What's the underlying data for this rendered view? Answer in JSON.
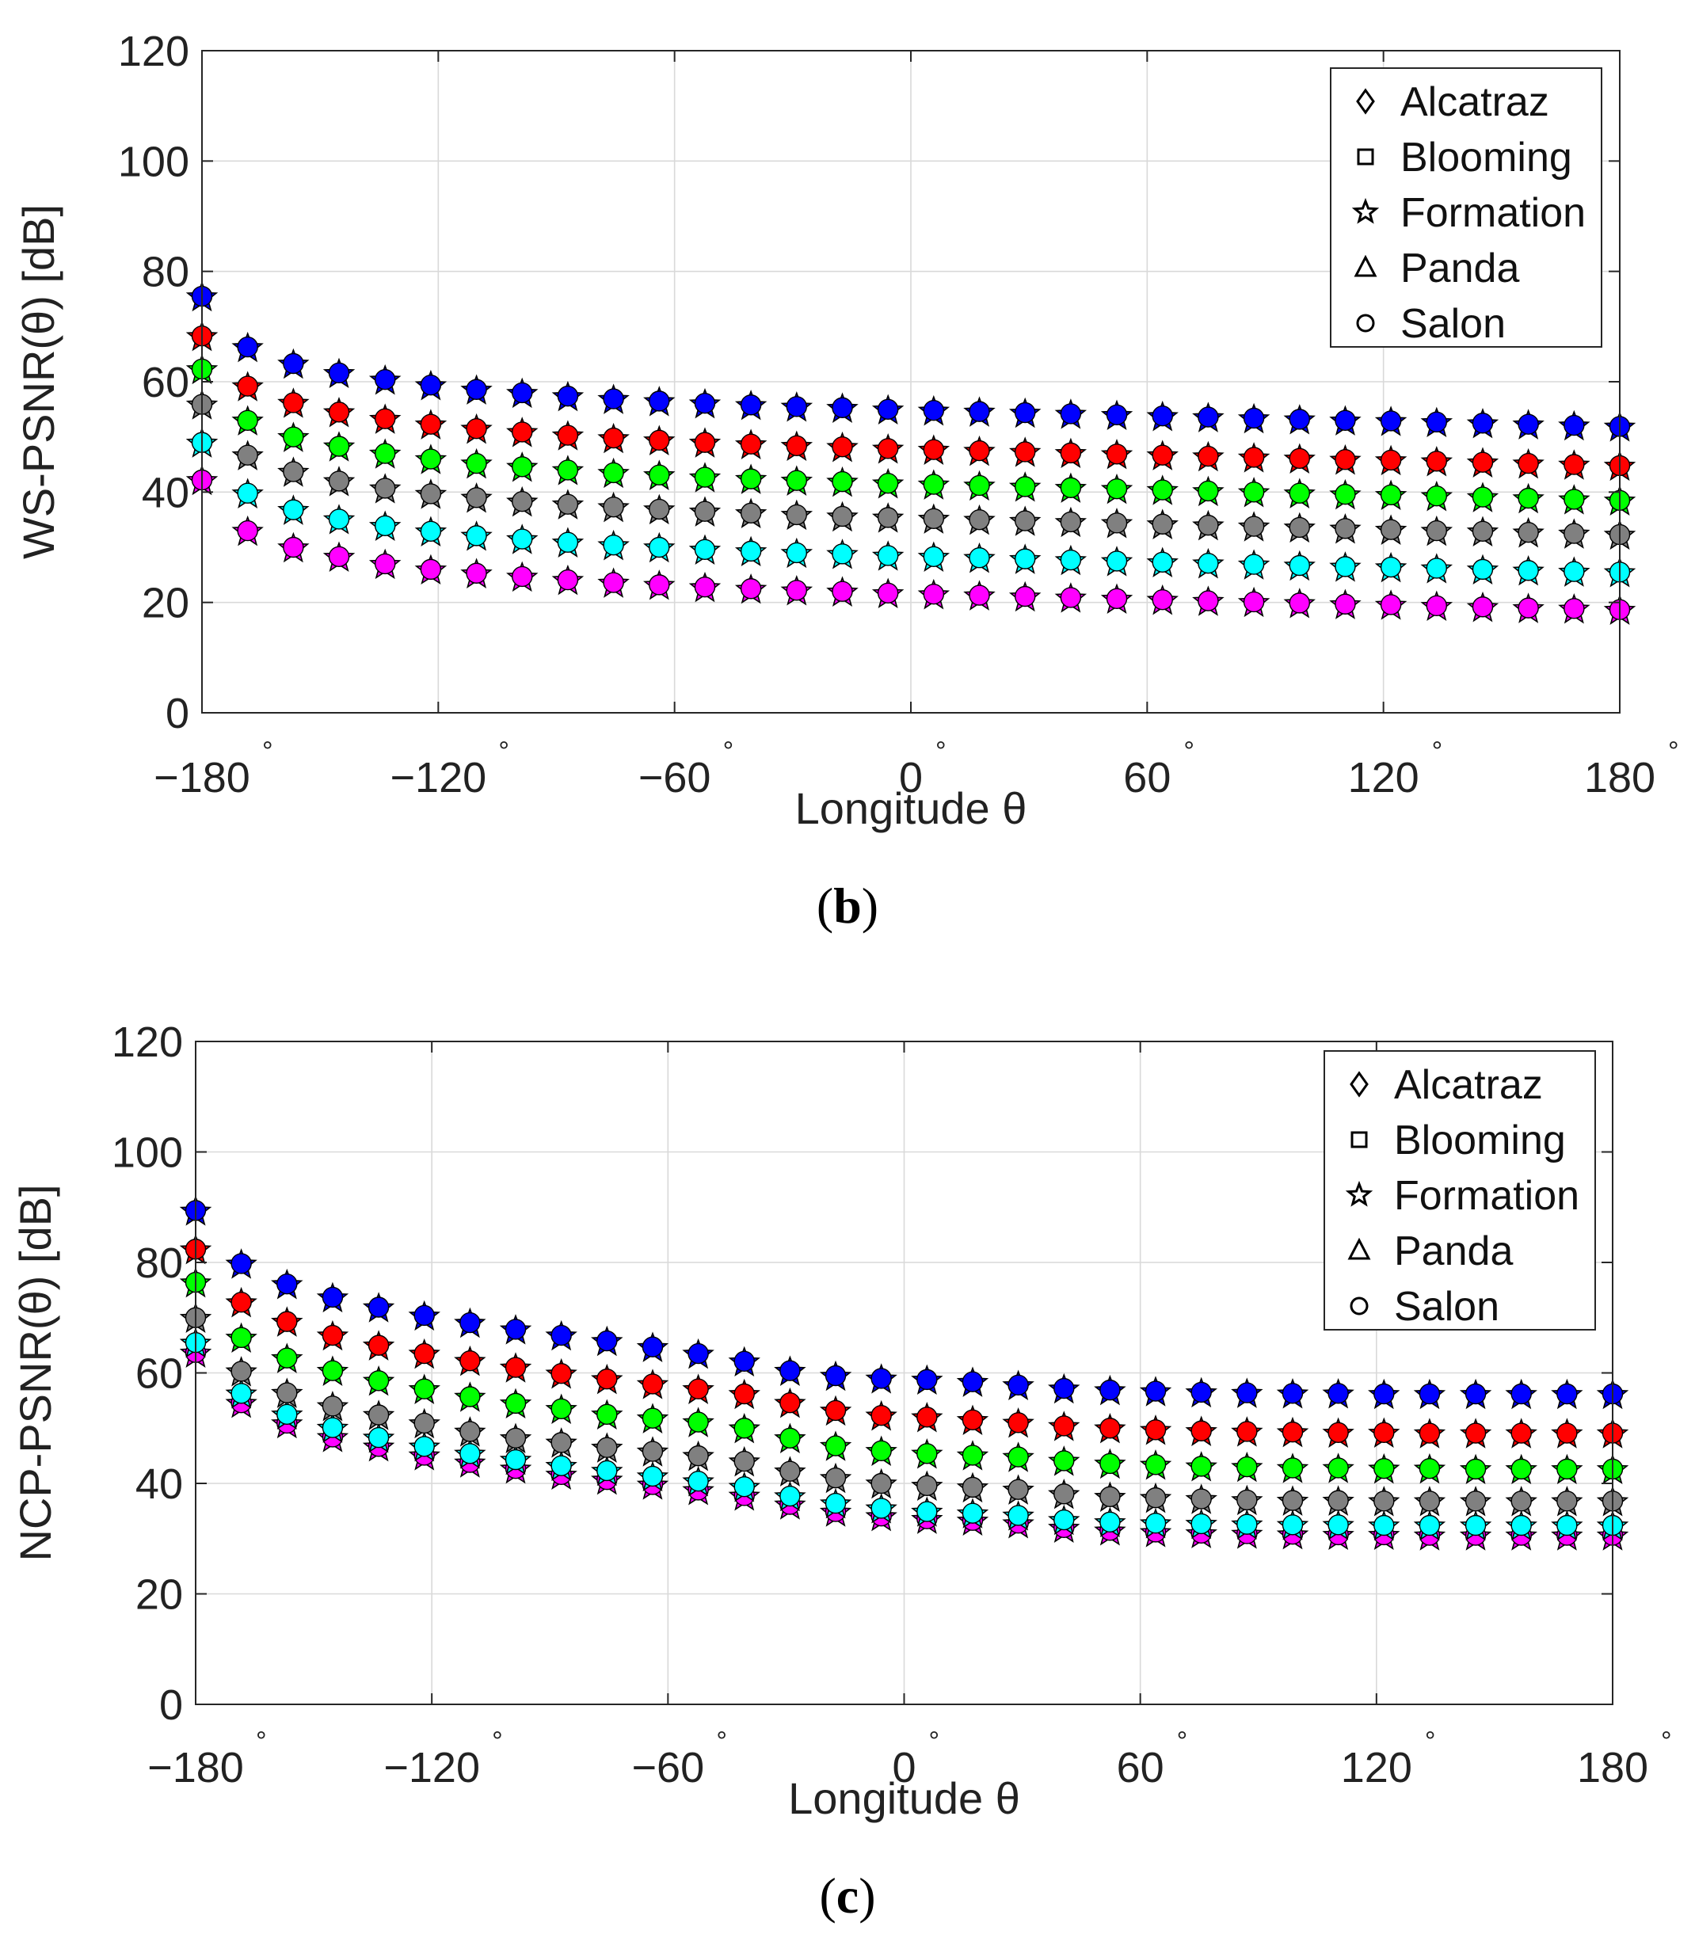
{
  "legend_entries": [
    {
      "name": "Alcatraz",
      "marker": "diamond"
    },
    {
      "name": "Blooming",
      "marker": "square"
    },
    {
      "name": "Formation",
      "marker": "star"
    },
    {
      "name": "Panda",
      "marker": "triangle"
    },
    {
      "name": "Salon",
      "marker": "circle"
    }
  ],
  "chart_data": [
    {
      "type": "scatter",
      "panel": "b",
      "caption_open": "(",
      "caption_letter": "b",
      "caption_close": ")",
      "xlabel": "Longitude θ",
      "ylabel": "WS-PSNR(θ) [dB]",
      "xlim": [
        -180,
        180
      ],
      "ylim": [
        0,
        120
      ],
      "xticks": [
        -180,
        -120,
        -60,
        0,
        60,
        120,
        180
      ],
      "yticks": [
        0,
        20,
        40,
        60,
        80,
        100,
        120
      ],
      "xtick_labels": [
        "−180",
        "−120",
        "−60",
        "0",
        "60",
        "120",
        "180"
      ],
      "xtick_suffix": "°",
      "ytick_labels": [
        "0",
        "20",
        "40",
        "60",
        "80",
        "100",
        "120"
      ],
      "grid": true,
      "legend_position": "top-right",
      "x": [
        -180,
        -168.4,
        -156.8,
        -145.2,
        -133.5,
        -121.9,
        -110.3,
        -98.7,
        -87.1,
        -75.5,
        -63.9,
        -52.3,
        -40.6,
        -29.0,
        -17.4,
        -5.8,
        5.8,
        17.4,
        29.0,
        40.6,
        52.3,
        63.9,
        75.5,
        87.1,
        98.7,
        110.3,
        121.9,
        133.5,
        145.2,
        156.8,
        168.4,
        180
      ],
      "series": [
        {
          "color": "#0000ff",
          "values": [
            75.5,
            66.3,
            63.3,
            61.6,
            60.4,
            59.4,
            58.6,
            58.0,
            57.4,
            56.9,
            56.5,
            56.1,
            55.8,
            55.5,
            55.3,
            55.0,
            54.8,
            54.6,
            54.4,
            54.2,
            54.0,
            53.8,
            53.6,
            53.4,
            53.2,
            53.0,
            52.9,
            52.7,
            52.5,
            52.3,
            52.1,
            51.9
          ]
        },
        {
          "color": "#ff0000",
          "values": [
            68.3,
            59.2,
            56.2,
            54.5,
            53.3,
            52.3,
            51.5,
            50.9,
            50.3,
            49.8,
            49.4,
            49.0,
            48.7,
            48.4,
            48.2,
            47.9,
            47.7,
            47.5,
            47.3,
            47.1,
            46.9,
            46.7,
            46.5,
            46.3,
            46.1,
            45.9,
            45.8,
            45.6,
            45.4,
            45.2,
            45.0,
            44.8
          ]
        },
        {
          "color": "#00ff00",
          "values": [
            62.3,
            53.0,
            50.0,
            48.3,
            47.0,
            46.0,
            45.2,
            44.6,
            44.0,
            43.5,
            43.1,
            42.7,
            42.4,
            42.1,
            41.9,
            41.6,
            41.4,
            41.2,
            41.0,
            40.8,
            40.6,
            40.4,
            40.2,
            40.0,
            39.8,
            39.6,
            39.5,
            39.3,
            39.1,
            38.9,
            38.7,
            38.5
          ]
        },
        {
          "color": "#808080",
          "values": [
            55.9,
            46.7,
            43.7,
            42.0,
            40.7,
            39.7,
            39.0,
            38.3,
            37.8,
            37.3,
            36.9,
            36.5,
            36.2,
            35.9,
            35.6,
            35.4,
            35.2,
            35.0,
            34.8,
            34.6,
            34.4,
            34.2,
            34.0,
            33.8,
            33.6,
            33.4,
            33.2,
            33.0,
            32.9,
            32.7,
            32.5,
            32.3
          ]
        },
        {
          "color": "#00ffff",
          "values": [
            49.0,
            39.8,
            36.8,
            35.1,
            33.9,
            32.9,
            32.1,
            31.5,
            30.9,
            30.4,
            30.0,
            29.6,
            29.3,
            29.0,
            28.8,
            28.5,
            28.3,
            28.1,
            27.9,
            27.7,
            27.5,
            27.3,
            27.1,
            26.9,
            26.7,
            26.5,
            26.4,
            26.2,
            26.0,
            25.8,
            25.6,
            25.5
          ]
        },
        {
          "color": "#ff00ff",
          "values": [
            42.2,
            33.0,
            30.0,
            28.3,
            27.0,
            26.0,
            25.3,
            24.7,
            24.1,
            23.6,
            23.2,
            22.8,
            22.5,
            22.2,
            22.0,
            21.7,
            21.5,
            21.3,
            21.1,
            20.9,
            20.7,
            20.5,
            20.3,
            20.1,
            19.9,
            19.7,
            19.6,
            19.4,
            19.2,
            19.0,
            18.9,
            18.7
          ]
        }
      ]
    },
    {
      "type": "scatter",
      "panel": "c",
      "caption_open": "(",
      "caption_letter": "c",
      "caption_close": ")",
      "xlabel": "Longitude θ",
      "ylabel": "NCP-PSNR(θ) [dB]",
      "xlim": [
        -180,
        180
      ],
      "ylim": [
        0,
        120
      ],
      "xticks": [
        -180,
        -120,
        -60,
        0,
        60,
        120,
        180
      ],
      "yticks": [
        0,
        20,
        40,
        60,
        80,
        100,
        120
      ],
      "xtick_labels": [
        "−180",
        "−120",
        "−60",
        "0",
        "60",
        "120",
        "180"
      ],
      "xtick_suffix": "°",
      "ytick_labels": [
        "0",
        "20",
        "40",
        "60",
        "80",
        "100",
        "120"
      ],
      "grid": true,
      "legend_position": "top-right",
      "x": [
        -180,
        -168.4,
        -156.8,
        -145.2,
        -133.5,
        -121.9,
        -110.3,
        -98.7,
        -87.1,
        -75.5,
        -63.9,
        -52.3,
        -40.6,
        -29.0,
        -17.4,
        -5.8,
        5.8,
        17.4,
        29.0,
        40.6,
        52.3,
        63.9,
        75.5,
        87.1,
        98.7,
        110.3,
        121.9,
        133.5,
        145.2,
        156.8,
        168.4,
        180
      ],
      "series": [
        {
          "color": "#0000ff",
          "values": [
            89.4,
            79.8,
            76.1,
            73.7,
            71.9,
            70.4,
            69.1,
            67.9,
            66.8,
            65.8,
            64.7,
            63.5,
            62.1,
            60.4,
            59.5,
            59.0,
            58.8,
            58.4,
            57.8,
            57.2,
            56.9,
            56.7,
            56.5,
            56.4,
            56.3,
            56.3,
            56.2,
            56.2,
            56.2,
            56.2,
            56.2,
            56.2
          ]
        },
        {
          "color": "#ff0000",
          "values": [
            82.4,
            72.8,
            69.3,
            66.8,
            65.0,
            63.5,
            62.2,
            61.0,
            59.9,
            58.9,
            58.0,
            57.1,
            56.2,
            54.6,
            53.2,
            52.3,
            52.0,
            51.5,
            51.0,
            50.4,
            50.0,
            49.7,
            49.5,
            49.4,
            49.3,
            49.2,
            49.2,
            49.1,
            49.1,
            49.1,
            49.1,
            49.1
          ]
        },
        {
          "color": "#00ff00",
          "values": [
            76.4,
            66.4,
            62.7,
            60.4,
            58.6,
            57.1,
            55.7,
            54.5,
            53.5,
            52.5,
            51.8,
            51.1,
            50.0,
            48.2,
            46.8,
            45.9,
            45.4,
            45.1,
            44.8,
            44.1,
            43.6,
            43.4,
            43.1,
            43.0,
            42.8,
            42.8,
            42.7,
            42.7,
            42.6,
            42.6,
            42.6,
            42.6
          ]
        },
        {
          "color": "#808080",
          "values": [
            70.0,
            60.3,
            56.4,
            54.0,
            52.4,
            50.9,
            49.4,
            48.2,
            47.4,
            46.5,
            45.8,
            45.0,
            44.0,
            42.2,
            41.0,
            40.0,
            39.6,
            39.3,
            38.9,
            38.1,
            37.6,
            37.4,
            37.2,
            37.0,
            36.9,
            36.9,
            36.8,
            36.8,
            36.8,
            36.8,
            36.8,
            36.8
          ]
        },
        {
          "color": "#00ffff",
          "values": [
            65.5,
            56.3,
            52.5,
            50.1,
            48.3,
            46.7,
            45.4,
            44.3,
            43.2,
            42.3,
            41.3,
            40.4,
            39.4,
            37.7,
            36.4,
            35.5,
            34.9,
            34.6,
            34.2,
            33.4,
            33.0,
            32.8,
            32.7,
            32.6,
            32.5,
            32.5,
            32.4,
            32.4,
            32.4,
            32.4,
            32.4,
            32.4
          ]
        },
        {
          "color": "#ff00ff",
          "values": [
            63.7,
            54.6,
            50.9,
            48.4,
            46.7,
            45.1,
            43.8,
            42.7,
            41.6,
            40.7,
            39.8,
            38.8,
            37.8,
            36.2,
            34.9,
            34.1,
            33.6,
            33.3,
            32.8,
            32.0,
            31.5,
            31.2,
            31.0,
            30.9,
            30.8,
            30.7,
            30.7,
            30.6,
            30.6,
            30.6,
            30.6,
            30.6
          ]
        }
      ]
    }
  ]
}
